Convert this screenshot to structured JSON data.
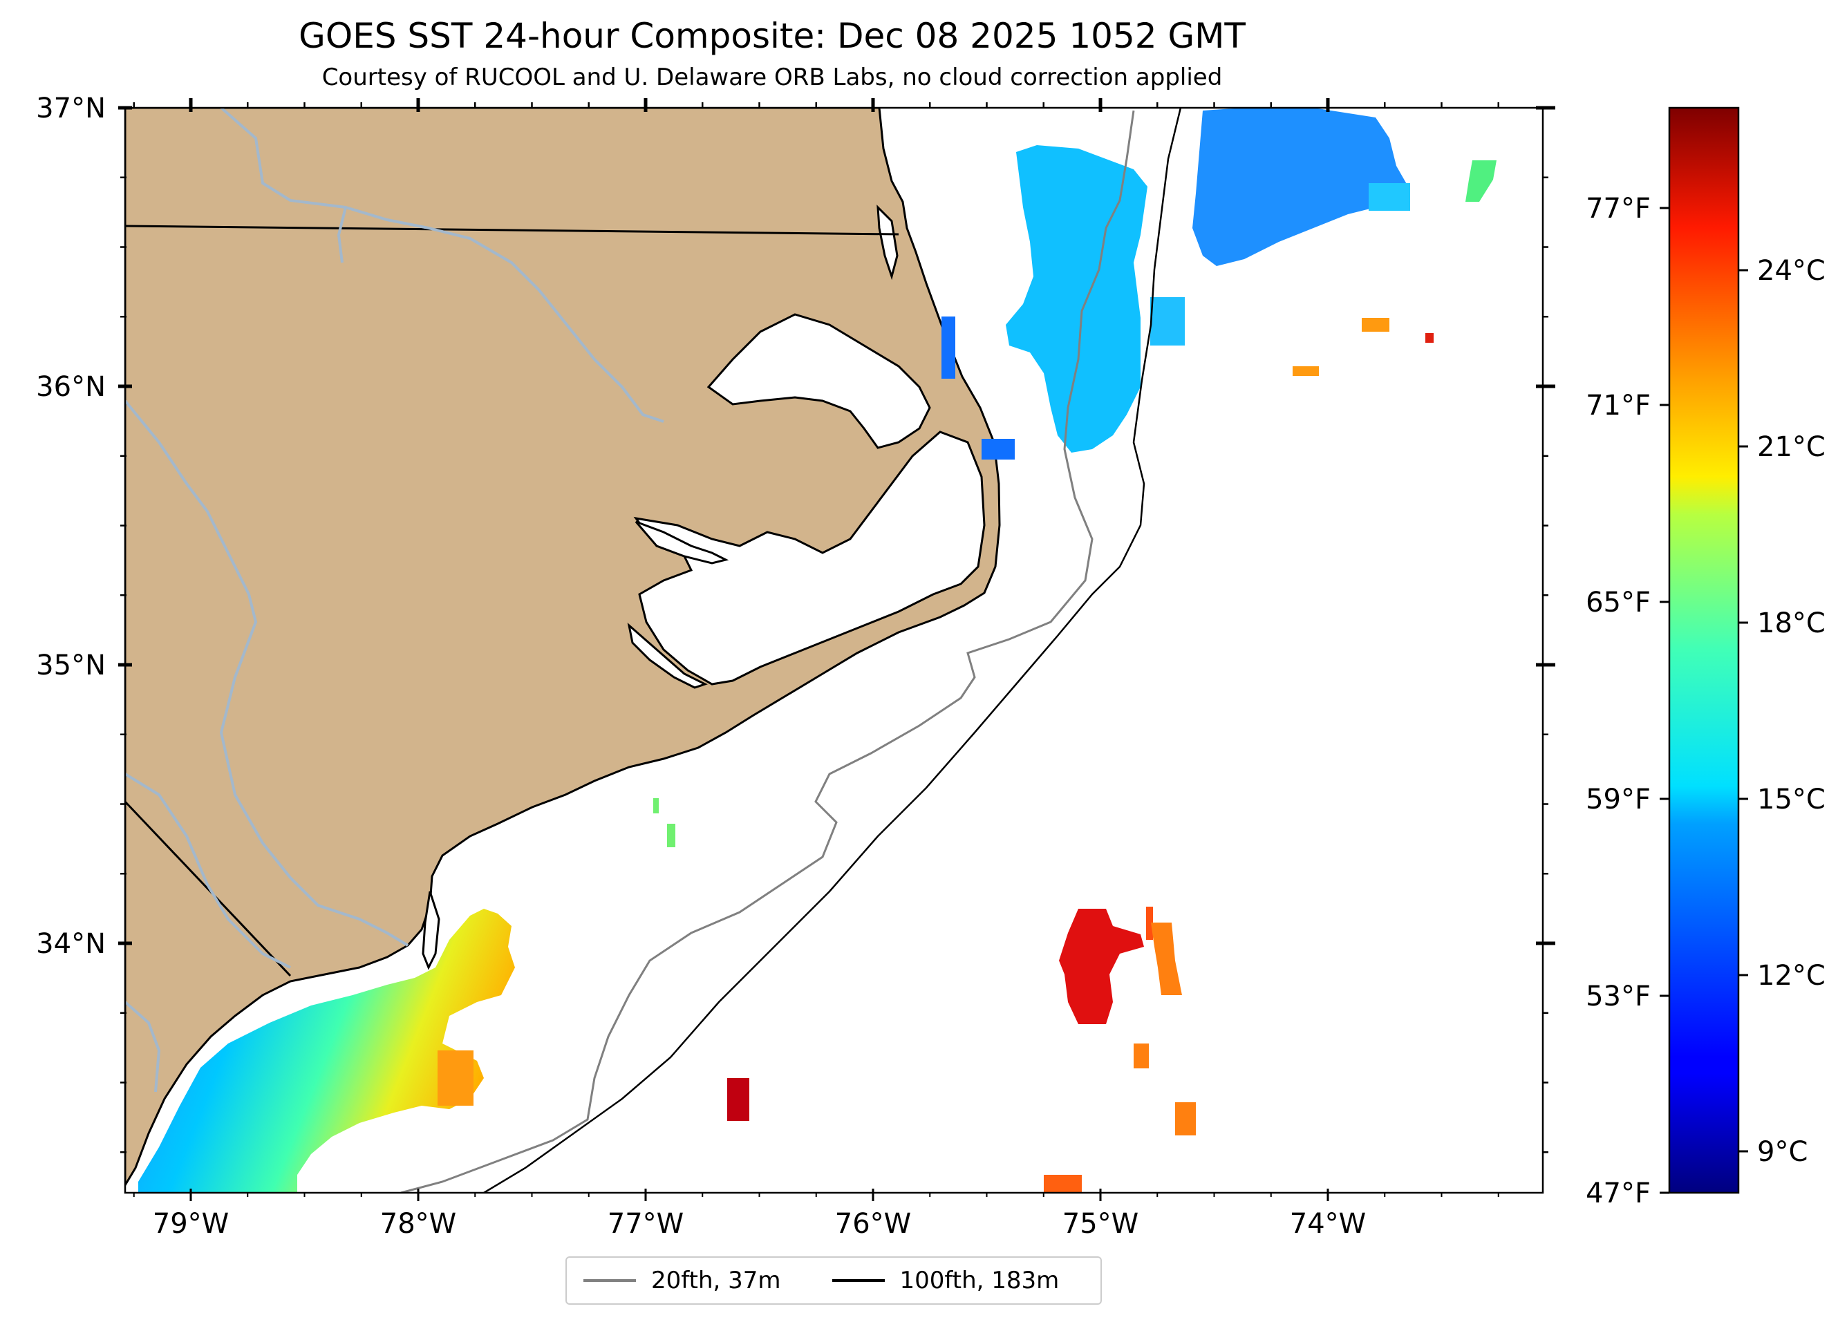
{
  "title": "GOES SST 24-hour Composite: Dec 08 2025 1052 GMT",
  "subtitle": "Courtesy of RUCOOL and U. Delaware ORB Labs, no cloud correction applied",
  "map": {
    "lat_ticks": [
      {
        "value": 37,
        "label": "37°N"
      },
      {
        "value": 36,
        "label": "36°N"
      },
      {
        "value": 35,
        "label": "35°N"
      },
      {
        "value": 34,
        "label": "34°N"
      }
    ],
    "lon_ticks": [
      {
        "value": -79,
        "label": "79°W"
      },
      {
        "value": -78,
        "label": "78°W"
      },
      {
        "value": -77,
        "label": "77°W"
      },
      {
        "value": -76,
        "label": "76°W"
      },
      {
        "value": -75,
        "label": "75°W"
      },
      {
        "value": -74,
        "label": "74°W"
      }
    ],
    "colors": {
      "land": "#d2b48c",
      "ocean": "#ffffff",
      "rivers": "#a3b8cc",
      "coastline": "#000000",
      "isobath_20fth": "#808080",
      "isobath_100fth": "#000000"
    }
  },
  "colorbar": {
    "celsius_ticks": [
      {
        "value": 9,
        "label": "9°C"
      },
      {
        "value": 12,
        "label": "12°C"
      },
      {
        "value": 15,
        "label": "15°C"
      },
      {
        "value": 18,
        "label": "18°C"
      },
      {
        "value": 21,
        "label": "21°C"
      },
      {
        "value": 24,
        "label": "24°C"
      }
    ],
    "fahrenheit_ticks": [
      {
        "value": 47,
        "label": "47°F"
      },
      {
        "value": 53,
        "label": "53°F"
      },
      {
        "value": 59,
        "label": "59°F"
      },
      {
        "value": 65,
        "label": "65°F"
      },
      {
        "value": 71,
        "label": "71°F"
      },
      {
        "value": 77,
        "label": "77°F"
      }
    ],
    "colormap": "jet"
  },
  "legend": {
    "items": [
      {
        "label": "20fth, 37m",
        "color": "#808080"
      },
      {
        "label": "100fth, 183m",
        "color": "#000000"
      }
    ]
  }
}
